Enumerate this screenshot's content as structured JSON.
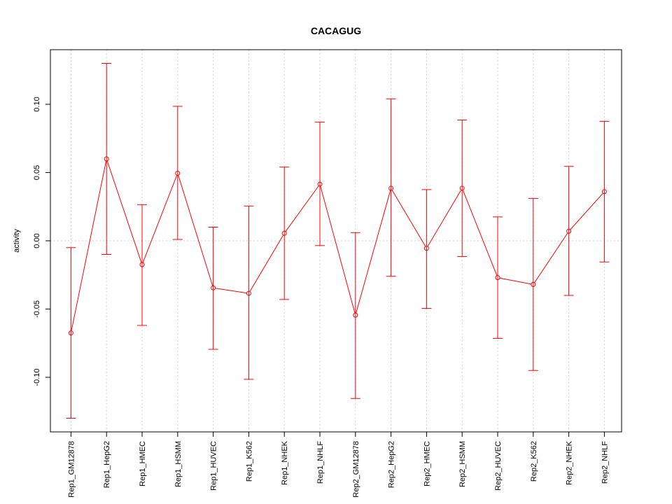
{
  "chart_data": {
    "type": "line",
    "title": "CACAGUG",
    "xlabel": "",
    "ylabel": "activity",
    "ylim": [
      -0.14,
      0.14
    ],
    "yticks": [
      -0.1,
      -0.05,
      0.0,
      0.05,
      0.1
    ],
    "ytick_labels": [
      "-0.10",
      "-0.05",
      "0.00",
      "0.05",
      "0.10"
    ],
    "grid": true,
    "reference_line": 0.0,
    "categories": [
      "Rep1_GM12878",
      "Rep1_HepG2",
      "Rep1_HMEC",
      "Rep1_HSMM",
      "Rep1_HUVEC",
      "Rep1_K562",
      "Rep1_NHEK",
      "Rep1_NHLF",
      "Rep2_GM12878",
      "Rep2_HepG2",
      "Rep2_HMEC",
      "Rep2_HSMM",
      "Rep2_HUVEC",
      "Rep2_K562",
      "Rep2_NHEK",
      "Rep2_NHLF"
    ],
    "series": [
      {
        "name": "activity",
        "color": "#ff0000",
        "values": [
          -0.0675,
          0.06,
          -0.0175,
          0.0495,
          -0.0345,
          -0.0385,
          0.0055,
          0.0415,
          -0.0545,
          0.0385,
          -0.0055,
          0.0385,
          -0.027,
          -0.032,
          0.007,
          0.036
        ],
        "lower": [
          -0.13,
          -0.01,
          -0.062,
          0.001,
          -0.0795,
          -0.1015,
          -0.043,
          -0.0035,
          -0.1155,
          -0.026,
          -0.0495,
          -0.0115,
          -0.0715,
          -0.095,
          -0.04,
          -0.0155
        ],
        "upper": [
          -0.005,
          0.13,
          0.0265,
          0.0985,
          0.01,
          0.0255,
          0.054,
          0.087,
          0.006,
          0.104,
          0.0375,
          0.0885,
          0.0175,
          0.031,
          0.0545,
          0.0875
        ]
      }
    ]
  }
}
